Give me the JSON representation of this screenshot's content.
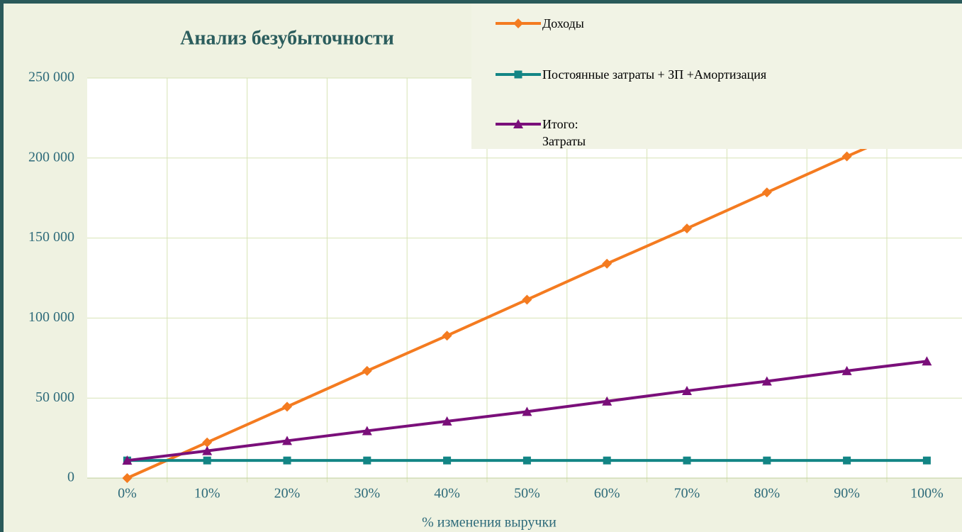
{
  "chart_data": {
    "type": "line",
    "title": "Анализ безубыточности",
    "x_label": "% изменения выручки",
    "categories": [
      "0%",
      "10%",
      "20%",
      "30%",
      "40%",
      "50%",
      "60%",
      "70%",
      "80%",
      "90%",
      "100%"
    ],
    "series": [
      {
        "name": "Доходы",
        "color": "#f47b20",
        "marker": "diamond",
        "values": [
          0,
          22300,
          44600,
          67000,
          89000,
          111500,
          134000,
          156000,
          178500,
          201000,
          223000
        ]
      },
      {
        "name": "Постоянные  затраты + ЗП +Амортизация",
        "color": "#138585",
        "marker": "square",
        "values": [
          11000,
          11000,
          11000,
          11000,
          11000,
          11000,
          11000,
          11000,
          11000,
          11000,
          11000
        ]
      },
      {
        "name": "Итого:\nЗатраты",
        "color": "#7a0f7a",
        "marker": "triangle",
        "values": [
          11000,
          17000,
          23300,
          29500,
          35500,
          41500,
          48000,
          54500,
          60500,
          67000,
          73000
        ]
      }
    ],
    "ylim": [
      0,
      250000
    ],
    "yticks": [
      {
        "value": 0,
        "label": "0"
      },
      {
        "value": 50000,
        "label": "50 000"
      },
      {
        "value": 100000,
        "label": "100 000"
      },
      {
        "value": 150000,
        "label": "150 000"
      },
      {
        "value": 200000,
        "label": "200 000"
      },
      {
        "value": 250000,
        "label": "250 000"
      }
    ],
    "grid": true,
    "legend": "top-right"
  }
}
